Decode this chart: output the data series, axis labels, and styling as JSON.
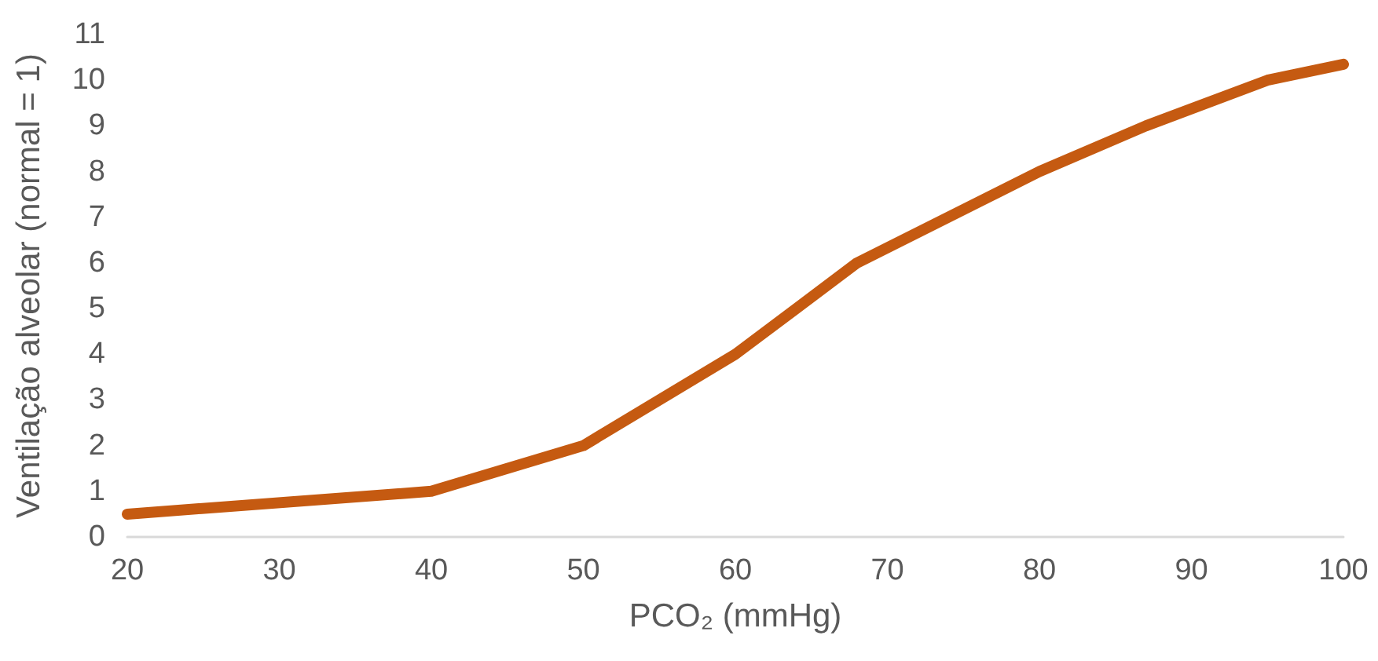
{
  "chart_data": {
    "type": "line",
    "xlabel": "PCO₂ (mmHg)",
    "ylabel": "Ventilação alveolar (normal = 1)",
    "x": [
      20,
      40,
      50,
      60,
      68,
      80,
      87,
      95,
      100
    ],
    "series": [
      {
        "color": "#c55a11",
        "values": [
          0.5,
          1,
          2,
          4,
          6,
          8,
          9,
          10,
          10.35
        ]
      }
    ],
    "xlim": [
      20,
      100
    ],
    "xticks": [
      20,
      30,
      40,
      50,
      60,
      70,
      80,
      90,
      100
    ],
    "ylim": [
      0,
      11
    ],
    "yticks": [
      0,
      1,
      2,
      3,
      4,
      5,
      6,
      7,
      8,
      9,
      10,
      11
    ],
    "grid": false,
    "line_style": "solid"
  }
}
